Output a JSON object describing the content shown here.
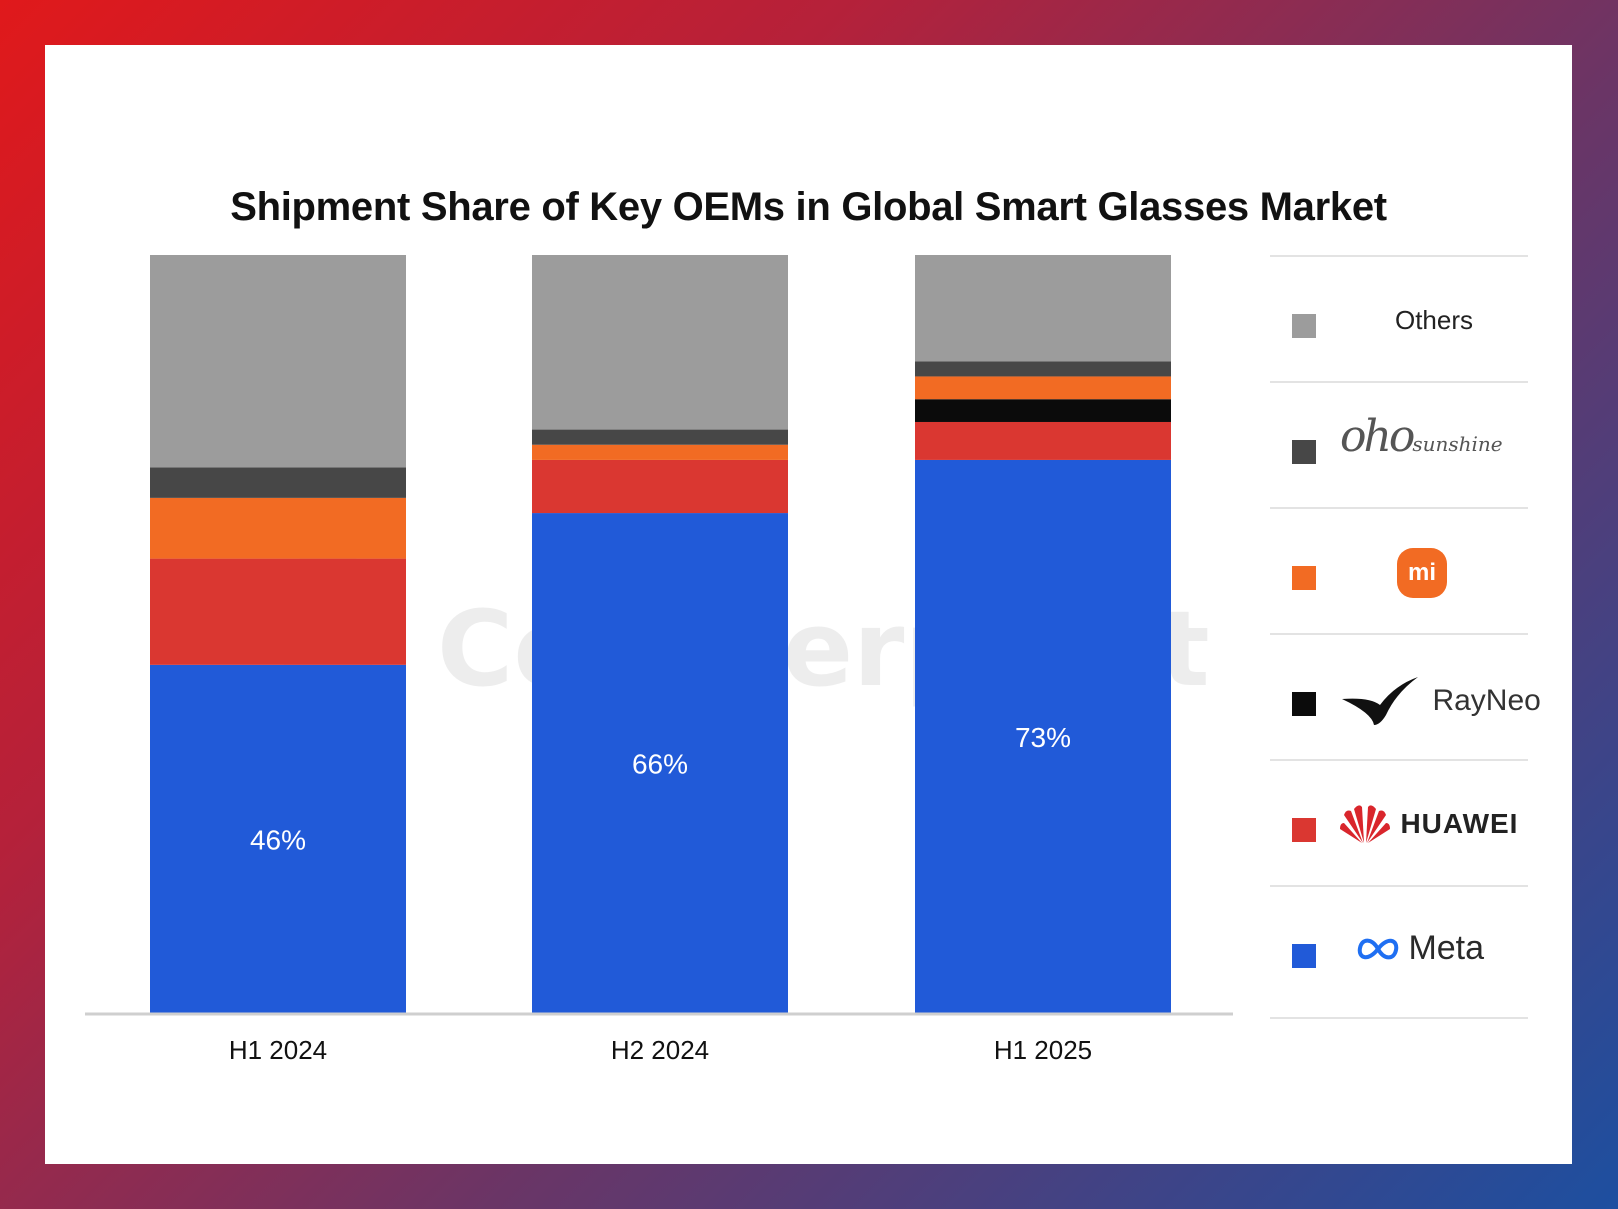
{
  "chart_data": {
    "type": "bar",
    "stacked": true,
    "title": "Shipment Share of Key OEMs in Global Smart Glasses Market",
    "watermark": "Counterpoint",
    "categories": [
      "H1 2024",
      "H2 2024",
      "H1 2025"
    ],
    "ylim": [
      0,
      100
    ],
    "grid": false,
    "legend_position": "right",
    "series": [
      {
        "name": "Meta",
        "color": "#215ad8",
        "values": [
          46,
          66,
          73
        ],
        "labels": [
          "46%",
          "66%",
          "73%"
        ]
      },
      {
        "name": "HUAWEI",
        "color": "#da3731",
        "values": [
          14,
          7,
          5
        ],
        "labels": [
          "",
          "",
          ""
        ]
      },
      {
        "name": "RayNeo",
        "color": "#0b0b0b",
        "values": [
          0,
          0,
          3
        ],
        "labels": [
          "",
          "",
          ""
        ]
      },
      {
        "name": "Xiaomi",
        "color": "#f26b23",
        "values": [
          8,
          2,
          3
        ],
        "labels": [
          "",
          "",
          ""
        ]
      },
      {
        "name": "oho sunshine",
        "color": "#474747",
        "values": [
          4,
          2,
          2
        ],
        "labels": [
          "",
          "",
          ""
        ]
      },
      {
        "name": "Others",
        "color": "#9c9c9c",
        "values": [
          28,
          23,
          14
        ],
        "labels": [
          "",
          "",
          ""
        ]
      }
    ]
  },
  "legend": {
    "others": "Others",
    "oho": "oho",
    "oho_small": "sunshine",
    "mi": "mi",
    "rayneo": "RayNeo",
    "huawei": "HUAWEI",
    "meta": "Meta"
  }
}
